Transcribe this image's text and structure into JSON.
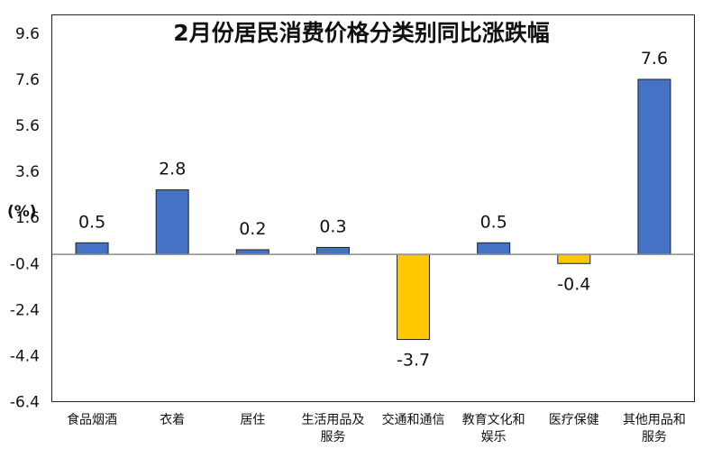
{
  "chart_data": {
    "type": "bar",
    "title": "2月份居民消费价格分类别同比涨跌幅",
    "ylabel": "(%)",
    "categories": [
      [
        "食品烟酒"
      ],
      [
        "衣着"
      ],
      [
        "居住"
      ],
      [
        "生活用品及",
        "服务"
      ],
      [
        "交通和通信"
      ],
      [
        "教育文化和",
        "娱乐"
      ],
      [
        "医疗保健"
      ],
      [
        "其他用品和",
        "服务"
      ]
    ],
    "values": [
      0.5,
      2.8,
      0.2,
      0.3,
      -3.7,
      0.5,
      -0.4,
      7.6
    ],
    "value_labels": [
      "0.5",
      "2.8",
      "0.2",
      "0.3",
      "-3.7",
      "0.5",
      "-0.4",
      "7.6"
    ],
    "yticks": [
      "9.6",
      "7.6",
      "5.6",
      "3.6",
      "1.6",
      "-0.4",
      "-2.4",
      "-4.4",
      "-6.4"
    ],
    "ylim": [
      -6.4,
      10.4
    ],
    "grid": false,
    "colors": {
      "positive": "#4472C4",
      "negative": "#FFC800"
    }
  }
}
